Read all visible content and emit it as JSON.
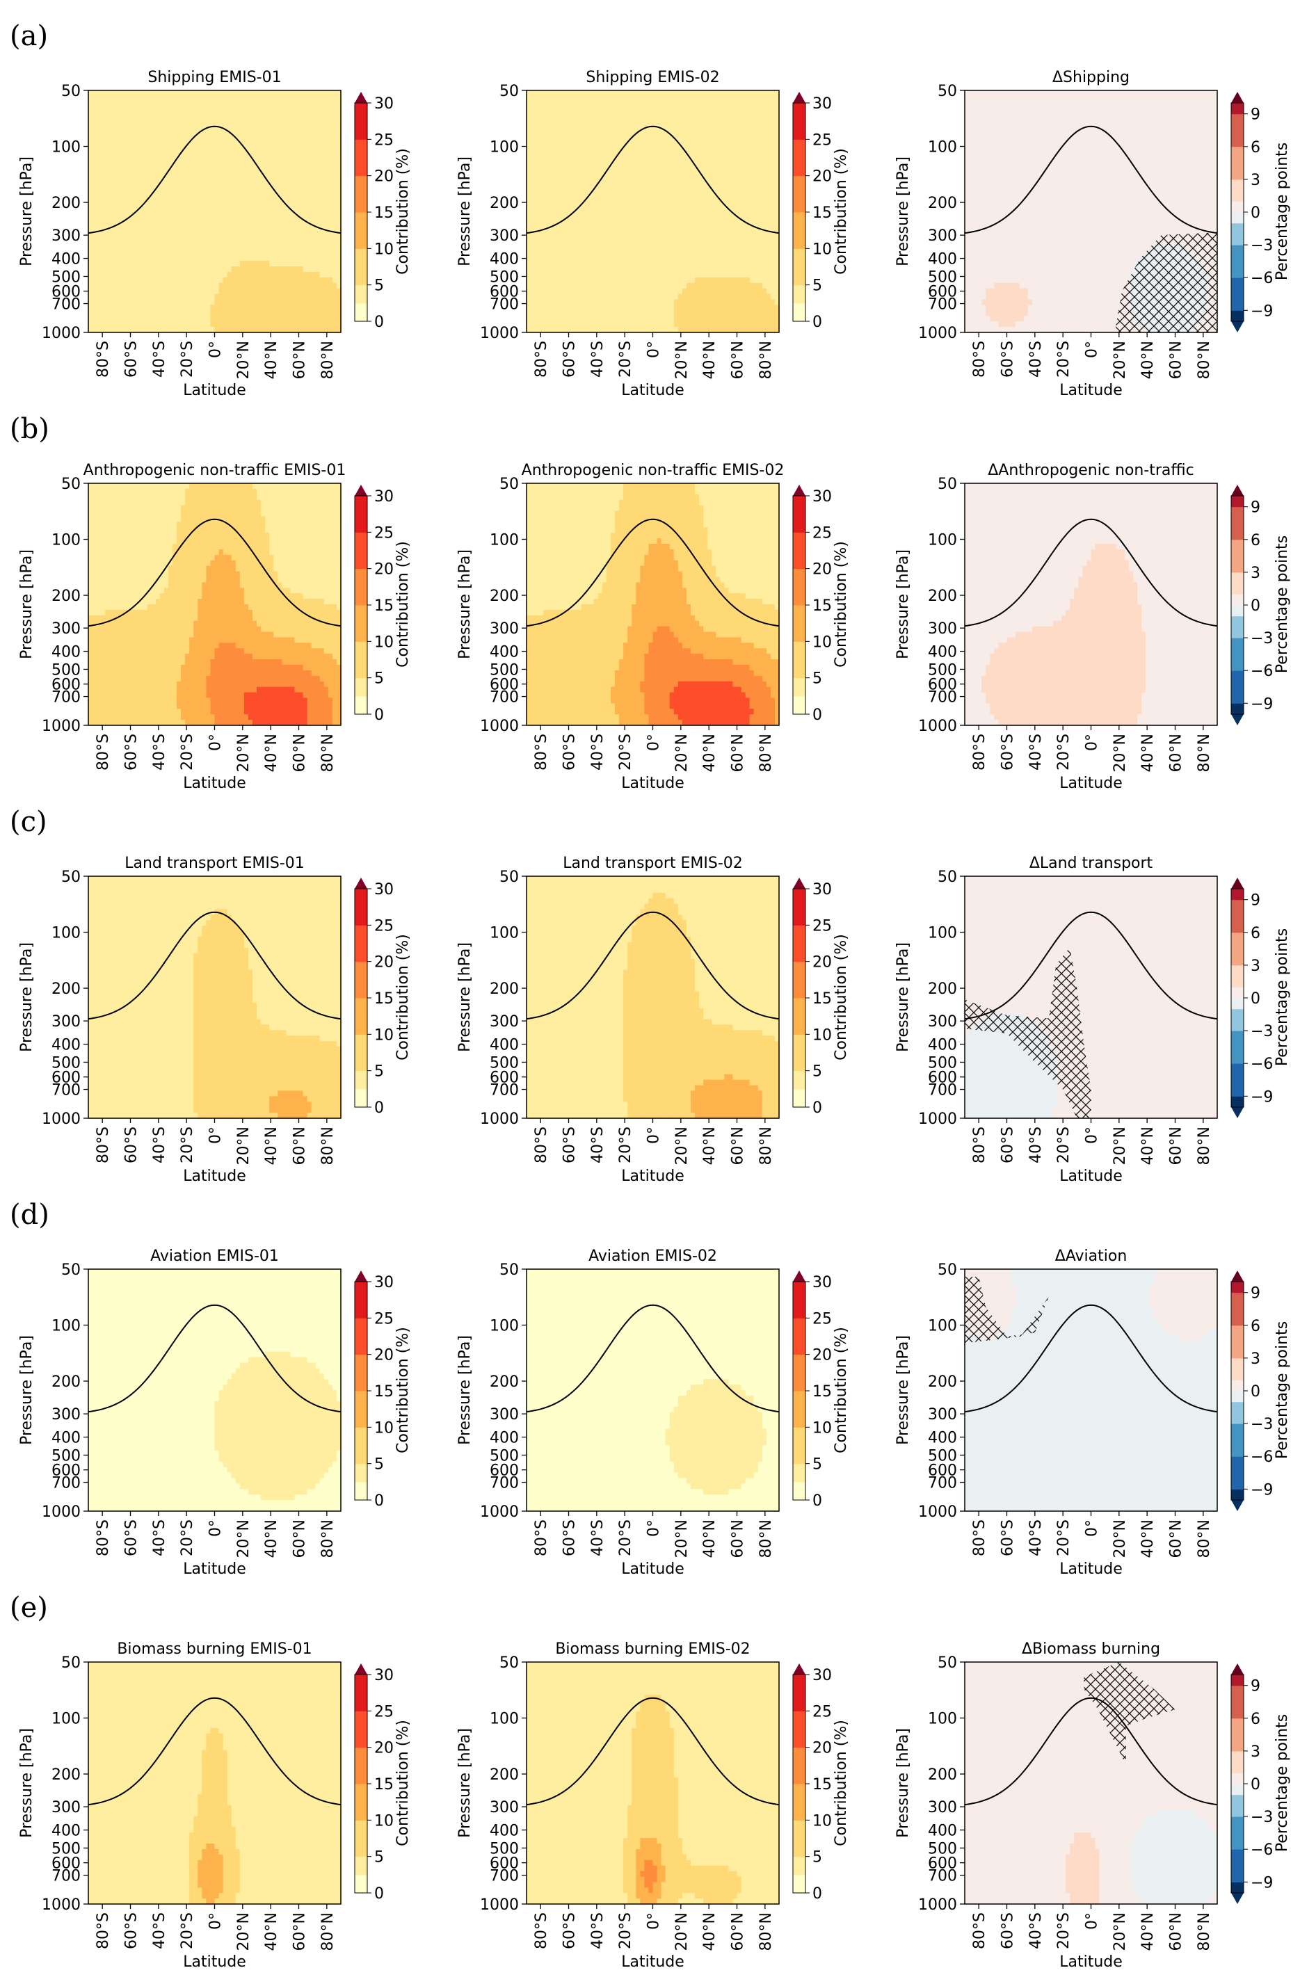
{
  "common": {
    "ylabel": "Pressure [hPa]",
    "xlabel": "Latitude",
    "y_ticks": [
      "50",
      "100",
      "200",
      "300",
      "400",
      "500",
      "600",
      "700",
      "1000"
    ],
    "x_ticks": [
      "80°S",
      "60°S",
      "40°S",
      "20°S",
      "0°",
      "20°N",
      "40°N",
      "60°N",
      "80°N"
    ],
    "contrib_label": "Contribution (%)",
    "contrib_ticks": [
      "30",
      "25",
      "20",
      "15",
      "10",
      "5",
      "0"
    ],
    "delta_label": "Percentage points",
    "delta_ticks": [
      "9",
      "6",
      "3",
      "0",
      "−3",
      "−6",
      "−9"
    ]
  },
  "colors": {
    "contrib_levels": [
      "#ffffcc",
      "#ffeda0",
      "#fed976",
      "#feb24c",
      "#fd8d3c",
      "#fc4e2a",
      "#e31a1c",
      "#bd0026",
      "#800026"
    ],
    "delta_neg": [
      "#053061",
      "#2166ac",
      "#4393c3",
      "#92c5de",
      "#d1e5f0",
      "#eaf0f2"
    ],
    "delta_pos": [
      "#f7ece8",
      "#fddbc7",
      "#f4a582",
      "#d6604d",
      "#b2182b",
      "#67001f"
    ],
    "tropopause": "#000000"
  },
  "chart_data": [
    {
      "panel": "(a)",
      "type": "heatmap",
      "plots": [
        {
          "title": "Shipping EMIS-01",
          "kind": "contrib",
          "field": {
            "base": 3.2,
            "blobs": [
              {
                "lat": 15,
                "p": 150,
                "slat": 18,
                "sp": 0.9,
                "amp": 1.5
              },
              {
                "lat": 50,
                "p": 850,
                "slat": 35,
                "sp": 0.45,
                "amp": 5
              }
            ]
          }
        },
        {
          "title": "Shipping EMIS-02",
          "kind": "contrib",
          "field": {
            "base": 3.0,
            "blobs": [
              {
                "lat": 10,
                "p": 180,
                "slat": 20,
                "sp": 0.9,
                "amp": 1.4
              },
              {
                "lat": 55,
                "p": 850,
                "slat": 30,
                "sp": 0.45,
                "amp": 4
              }
            ]
          }
        },
        {
          "title": "ΔShipping",
          "kind": "delta",
          "field": {
            "base": 0.4,
            "blobs": [
              {
                "lat": -60,
                "p": 700,
                "slat": 30,
                "sp": 0.5,
                "amp": 0.7
              },
              {
                "lat": 55,
                "p": 600,
                "slat": 25,
                "sp": 0.5,
                "amp": -0.8
              }
            ]
          },
          "hatch": [
            [
              17,
              1000
            ],
            [
              22,
              600
            ],
            [
              35,
              400
            ],
            [
              50,
              300
            ],
            [
              90,
              290
            ],
            [
              90,
              1000
            ]
          ]
        }
      ]
    },
    {
      "panel": "(b)",
      "type": "heatmap",
      "plots": [
        {
          "title": "Anthropogenic non-traffic EMIS-01",
          "kind": "contrib",
          "field": {
            "base": 4,
            "blobs": [
              {
                "lat": 5,
                "p": 250,
                "slat": 18,
                "sp": 1.0,
                "amp": 8
              },
              {
                "lat": 50,
                "p": 850,
                "slat": 35,
                "sp": 0.6,
                "amp": 18
              },
              {
                "lat": -60,
                "p": 700,
                "slat": 40,
                "sp": 0.6,
                "amp": 5
              }
            ]
          }
        },
        {
          "title": "Anthropogenic non-traffic EMIS-02",
          "kind": "contrib",
          "field": {
            "base": 4,
            "blobs": [
              {
                "lat": 5,
                "p": 250,
                "slat": 18,
                "sp": 1.0,
                "amp": 9
              },
              {
                "lat": 50,
                "p": 850,
                "slat": 35,
                "sp": 0.6,
                "amp": 19
              },
              {
                "lat": -60,
                "p": 700,
                "slat": 40,
                "sp": 0.6,
                "amp": 5
              }
            ]
          }
        },
        {
          "title": "ΔAnthropogenic non-traffic",
          "kind": "delta",
          "field": {
            "base": 0.5,
            "blobs": [
              {
                "lat": 12,
                "p": 350,
                "slat": 15,
                "sp": 0.8,
                "amp": 1.6
              },
              {
                "lat": -30,
                "p": 600,
                "slat": 40,
                "sp": 0.6,
                "amp": 1
              }
            ]
          },
          "hatch": []
        }
      ]
    },
    {
      "panel": "(c)",
      "type": "heatmap",
      "plots": [
        {
          "title": "Land transport EMIS-01",
          "kind": "contrib",
          "field": {
            "base": 3.5,
            "blobs": [
              {
                "lat": 5,
                "p": 220,
                "slat": 18,
                "sp": 0.9,
                "amp": 3
              },
              {
                "lat": 55,
                "p": 850,
                "slat": 35,
                "sp": 0.5,
                "amp": 7
              }
            ]
          }
        },
        {
          "title": "Land transport EMIS-02",
          "kind": "contrib",
          "field": {
            "base": 3.7,
            "blobs": [
              {
                "lat": 5,
                "p": 220,
                "slat": 18,
                "sp": 0.9,
                "amp": 3.5
              },
              {
                "lat": 55,
                "p": 850,
                "slat": 35,
                "sp": 0.5,
                "amp": 8
              }
            ]
          }
        },
        {
          "title": "ΔLand transport",
          "kind": "delta",
          "field": {
            "base": 0.4,
            "blobs": [
              {
                "lat": -60,
                "p": 650,
                "slat": 25,
                "sp": 0.6,
                "amp": -1.2
              },
              {
                "lat": 50,
                "p": 600,
                "slat": 25,
                "sp": 0.6,
                "amp": 0.6
              }
            ]
          },
          "hatch": [
            [
              -90,
              230
            ],
            [
              -60,
              280
            ],
            [
              -30,
              290
            ],
            [
              -25,
              150
            ],
            [
              -15,
              120
            ],
            [
              -10,
              200
            ],
            [
              -5,
              400
            ],
            [
              0,
              700
            ],
            [
              0,
              1000
            ],
            [
              -10,
              1000
            ],
            [
              -20,
              700
            ],
            [
              -40,
              500
            ],
            [
              -60,
              350
            ],
            [
              -90,
              330
            ]
          ]
        }
      ]
    },
    {
      "panel": "(d)",
      "type": "heatmap",
      "plots": [
        {
          "title": "Aviation EMIS-01",
          "kind": "contrib",
          "field": {
            "base": 1.2,
            "blobs": [
              {
                "lat": 45,
                "p": 350,
                "slat": 40,
                "sp": 0.8,
                "amp": 2.5
              }
            ]
          }
        },
        {
          "title": "Aviation EMIS-02",
          "kind": "contrib",
          "field": {
            "base": 1.0,
            "blobs": [
              {
                "lat": 45,
                "p": 400,
                "slat": 40,
                "sp": 0.8,
                "amp": 2.2
              }
            ]
          }
        },
        {
          "title": "ΔAviation",
          "kind": "delta",
          "field": {
            "base": -0.4,
            "blobs": [
              {
                "lat": -75,
                "p": 70,
                "slat": 15,
                "sp": 0.4,
                "amp": 1
              },
              {
                "lat": 70,
                "p": 70,
                "slat": 20,
                "sp": 0.4,
                "amp": 1
              }
            ]
          },
          "hatch": [
            [
              -90,
              55
            ],
            [
              -80,
              55
            ],
            [
              -75,
              80
            ],
            [
              -60,
              115
            ],
            [
              -40,
              110
            ],
            [
              -30,
              70
            ],
            [
              -50,
              115
            ],
            [
              -70,
              120
            ],
            [
              -90,
              125
            ]
          ]
        }
      ]
    },
    {
      "panel": "(e)",
      "type": "heatmap",
      "plots": [
        {
          "title": "Biomass burning EMIS-01",
          "kind": "contrib",
          "field": {
            "base": 2.8,
            "blobs": [
              {
                "lat": 0,
                "p": 200,
                "slat": 18,
                "sp": 1.1,
                "amp": 2.5
              },
              {
                "lat": -3,
                "p": 700,
                "slat": 8,
                "sp": 0.35,
                "amp": 10
              },
              {
                "lat": 50,
                "p": 800,
                "slat": 30,
                "sp": 0.5,
                "amp": 2
              }
            ]
          }
        },
        {
          "title": "Biomass burning EMIS-02",
          "kind": "contrib",
          "field": {
            "base": 3.0,
            "blobs": [
              {
                "lat": 0,
                "p": 200,
                "slat": 18,
                "sp": 1.1,
                "amp": 3
              },
              {
                "lat": -3,
                "p": 700,
                "slat": 8,
                "sp": 0.35,
                "amp": 12
              },
              {
                "lat": 50,
                "p": 800,
                "slat": 30,
                "sp": 0.5,
                "amp": 2.2
              }
            ]
          }
        },
        {
          "title": "ΔBiomass burning",
          "kind": "delta",
          "field": {
            "base": 0.4,
            "blobs": [
              {
                "lat": -5,
                "p": 700,
                "slat": 8,
                "sp": 0.35,
                "amp": 2.2
              },
              {
                "lat": 60,
                "p": 600,
                "slat": 25,
                "sp": 0.5,
                "amp": -1
              }
            ]
          },
          "hatch": [
            [
              -5,
              60
            ],
            [
              20,
              50
            ],
            [
              45,
              70
            ],
            [
              60,
              90
            ],
            [
              40,
              100
            ],
            [
              25,
              110
            ],
            [
              25,
              180
            ],
            [
              20,
              150
            ],
            [
              5,
              90
            ],
            [
              -5,
              70
            ]
          ]
        }
      ]
    }
  ]
}
